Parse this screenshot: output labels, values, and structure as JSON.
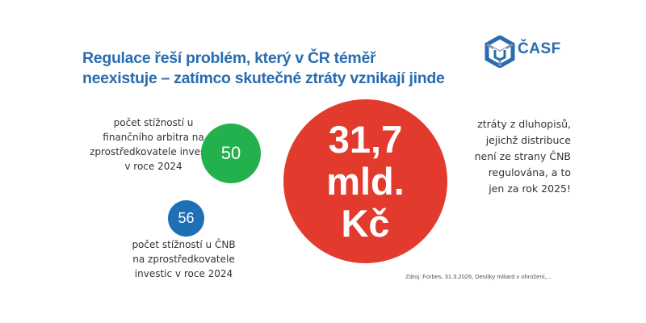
{
  "headline": {
    "line1": "Regulace řeší problém, který v ČR téměř",
    "line2": "neexistuje – zatímco skutečné ztráty vznikají jinde"
  },
  "logo": {
    "text": "ČASF",
    "color": "#2a6cb0"
  },
  "stats": {
    "arbiter": {
      "value": "50",
      "color": "#22b14c",
      "lines": [
        "počet stížností u",
        "finančního arbitra na",
        "zprostředkovatele investic",
        "v roce 2024"
      ]
    },
    "cnb": {
      "value": "56",
      "color": "#1f6fb5",
      "lines": [
        "počet stížností u ČNB",
        "na zprostředkovatele",
        "investic v roce 2024"
      ]
    },
    "bonds": {
      "value_lines": [
        "31,7",
        "mld.",
        "Kč"
      ],
      "color": "#e23b2e",
      "lines": [
        "ztráty z dluhopisů,",
        "jejichž distribuce",
        "není ze strany ČNB",
        "regulována, a to",
        "jen za rok 2025!"
      ]
    }
  },
  "source": "Zdroj: Forbes, 31.3.2026, Desítky miliard v ohrožení,..."
}
